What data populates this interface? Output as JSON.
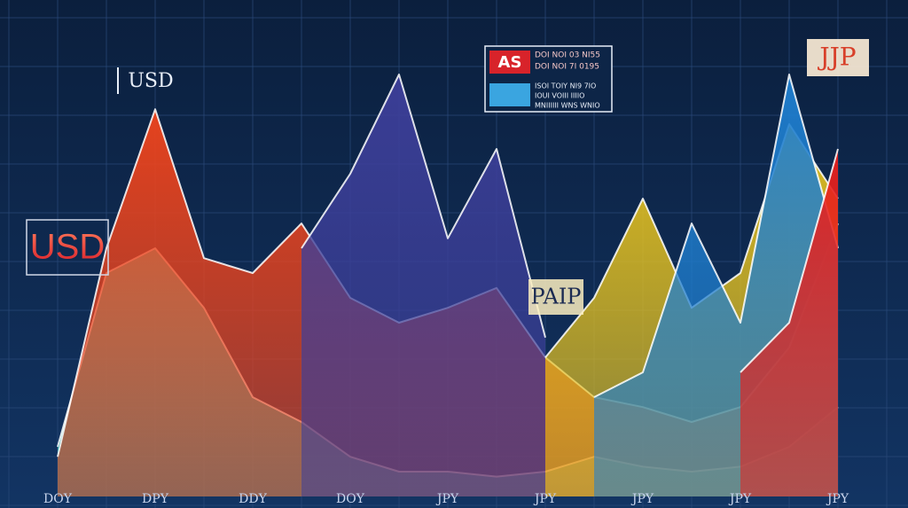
{
  "chart_data": {
    "type": "area",
    "categories": [
      "DOY",
      null,
      "DPY",
      null,
      "DDY",
      null,
      "DOY",
      null,
      "JPY",
      null,
      "JPY",
      null,
      "JPY",
      null,
      "JPY",
      null,
      "JPY"
    ],
    "ylim": [
      0,
      100
    ],
    "grid": true,
    "series": [
      {
        "color": "#2fd3c4",
        "values": [
          10,
          45,
          50,
          38,
          20,
          15,
          8,
          5,
          5,
          4,
          5,
          8,
          6,
          5,
          6,
          10,
          18
        ]
      },
      {
        "color": "#f0441c",
        "values": [
          8,
          50,
          78,
          48,
          45,
          55,
          40,
          35,
          38,
          42,
          28,
          20,
          18,
          15,
          18,
          30,
          55
        ]
      },
      {
        "color": "#3d3f9a",
        "values": [
          null,
          null,
          null,
          null,
          null,
          50,
          65,
          85,
          52,
          70,
          32,
          null,
          null,
          null,
          null,
          null,
          null
        ]
      },
      {
        "color": "#e6c21f",
        "values": [
          null,
          null,
          null,
          null,
          null,
          null,
          null,
          null,
          null,
          null,
          28,
          40,
          60,
          38,
          45,
          75,
          60
        ]
      },
      {
        "color": "#1f7fd0",
        "values": [
          null,
          null,
          null,
          null,
          null,
          null,
          null,
          null,
          null,
          null,
          null,
          20,
          25,
          55,
          35,
          85,
          50
        ]
      },
      {
        "color": "#e8201c",
        "values": [
          null,
          null,
          null,
          null,
          null,
          null,
          null,
          null,
          null,
          null,
          null,
          null,
          null,
          null,
          25,
          35,
          70
        ]
      }
    ],
    "annotations": [
      "USD",
      "USD",
      "PAIP",
      "JJP"
    ],
    "legend_box": {
      "badge": "AS",
      "lines": [
        "DOI NOI 03 NI55",
        "DOI NOI 7I 0195",
        "ISOI TOIY NI9 7IO",
        "IOUI VOIII IIIIO",
        "MNIIIIII WNS WNIO"
      ]
    }
  }
}
